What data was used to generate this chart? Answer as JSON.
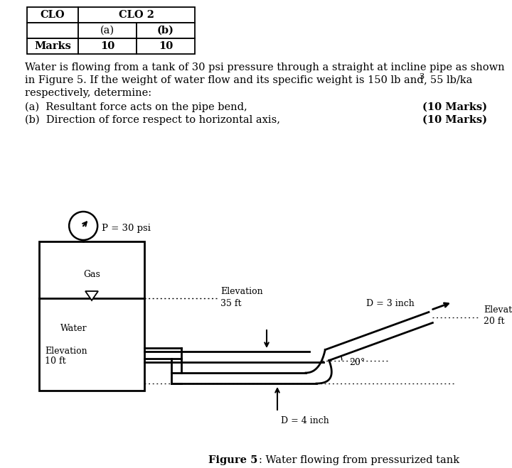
{
  "table": {
    "col1": "CLO",
    "col2_header": "CLO 2",
    "sub_a": "(a)",
    "sub_b": "(b)",
    "row_label": "Marks",
    "val_a": "10",
    "val_b": "10"
  },
  "line1": "Water is flowing from a tank of 30 psi pressure through a straight at incline pipe as shown",
  "line2_main": "in Figure 5. If the weight of water flow and its specific weight is 150 lb and  55 lb/ka",
  "line2_sup": "3",
  "line2_comma": ",",
  "line3": "respectively, determine:",
  "part_a_text": "(a)  Resultant force acts on the pipe bend,",
  "part_b_text": "(b)  Direction of force respect to horizontal axis,",
  "marks": "(10 Marks)",
  "fig_bold": "Figure 5",
  "fig_rest": ": Water flowing from pressurized tank",
  "p_label": "P = 30 psi",
  "gas_label": "Gas",
  "water_label": "Water",
  "elev35": "Elevation",
  "elev35b": "35 ft",
  "elev10": "Elevation",
  "elev10b": "10 ft",
  "elev20": "Elevation",
  "elev20b": "20 ft",
  "d3": "D = 3 inch",
  "d4": "D = 4 inch",
  "angle_label": "20°",
  "bg": "#ffffff"
}
